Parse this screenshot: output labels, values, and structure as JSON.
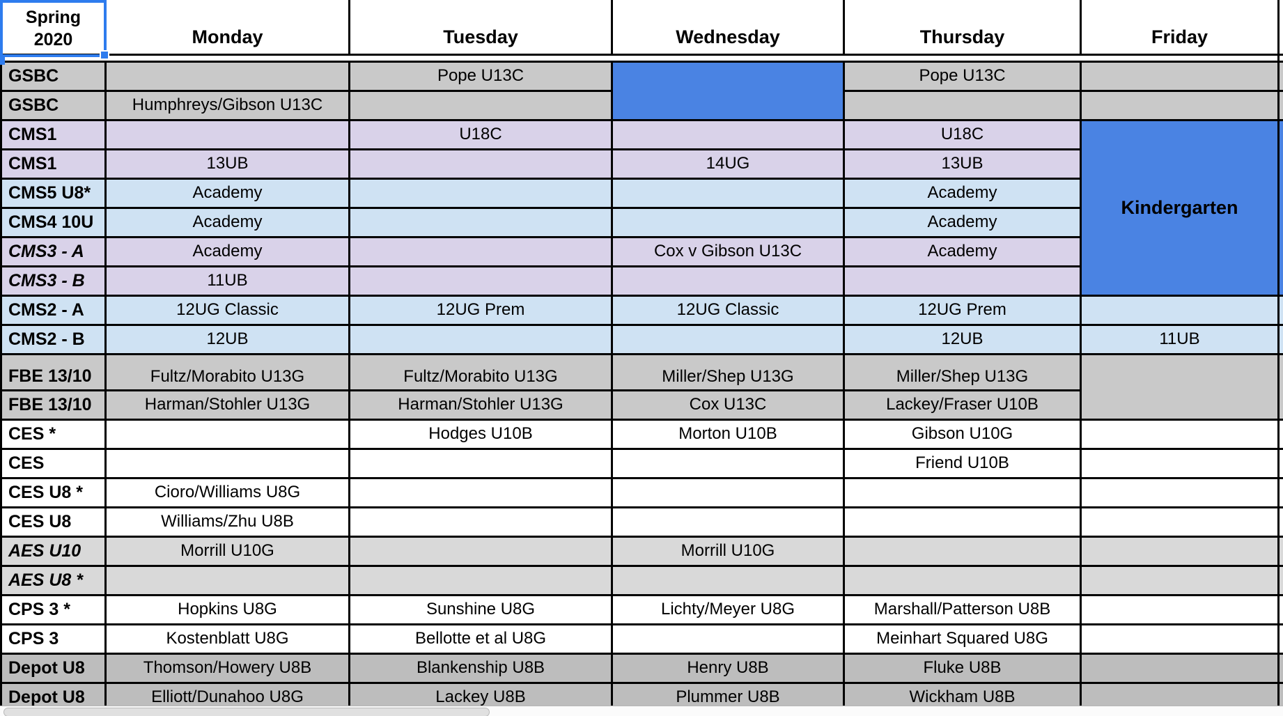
{
  "table": {
    "corner_cell": {
      "line1": "Spring",
      "line2": "2020"
    },
    "day_headers": [
      "Monday",
      "Tuesday",
      "Wednesday",
      "Thursday",
      "Friday"
    ],
    "rows": [
      {
        "label": "GSBC",
        "style": "gray",
        "italic": false,
        "cells": [
          "",
          "Pope U13C",
          null,
          "Pope U13C",
          ""
        ]
      },
      {
        "label": "GSBC",
        "style": "gray",
        "italic": false,
        "cells": [
          "Humphreys/Gibson U13C",
          "",
          null,
          "",
          ""
        ]
      },
      {
        "label": "CMS1",
        "style": "purple",
        "italic": false,
        "cells": [
          "",
          "U18C",
          "",
          "U18C",
          null
        ]
      },
      {
        "label": "CMS1",
        "style": "purple",
        "italic": false,
        "cells": [
          "13UB",
          "",
          "14UG",
          "13UB",
          null
        ]
      },
      {
        "label": "CMS5 U8*",
        "style": "lightblue",
        "italic": false,
        "cells": [
          "Academy",
          "",
          "",
          "Academy",
          null
        ]
      },
      {
        "label": "CMS4 10U",
        "style": "lightblue",
        "italic": false,
        "cells": [
          "Academy",
          "",
          "",
          "Academy",
          null
        ]
      },
      {
        "label": "CMS3 - A",
        "style": "purple",
        "italic": true,
        "cells": [
          "Academy",
          "",
          "Cox v Gibson U13C",
          "Academy",
          null
        ]
      },
      {
        "label": "CMS3 - B",
        "style": "purple",
        "italic": true,
        "cells": [
          "11UB",
          "",
          "",
          "",
          null
        ]
      },
      {
        "label": "CMS2 - A",
        "style": "lightblue",
        "italic": false,
        "cells": [
          "12UG Classic",
          "12UG Prem",
          "12UG Classic",
          "12UG Prem",
          ""
        ]
      },
      {
        "label": "CMS2 - B",
        "style": "lightblue",
        "italic": false,
        "cells": [
          "12UB",
          "",
          "",
          "12UB",
          "11UB"
        ]
      },
      {
        "label": "FBE 13/10",
        "style": "gray",
        "italic": false,
        "cells": [
          "Fultz/Morabito U13G",
          "Fultz/Morabito U13G",
          "Miller/Shep U13G",
          "Miller/Shep U13G",
          null
        ]
      },
      {
        "label": "FBE 13/10",
        "style": "gray",
        "italic": false,
        "cells": [
          "Harman/Stohler U13G",
          "Harman/Stohler U13G",
          "Cox U13C",
          "Lackey/Fraser U10B",
          null
        ]
      },
      {
        "label": "CES *",
        "style": "white",
        "italic": false,
        "cells": [
          "",
          "Hodges U10B",
          "Morton U10B",
          "Gibson U10G",
          ""
        ]
      },
      {
        "label": "CES",
        "style": "white",
        "italic": false,
        "cells": [
          "",
          "",
          "",
          "Friend U10B",
          ""
        ]
      },
      {
        "label": "CES U8 *",
        "style": "white",
        "italic": false,
        "cells": [
          "Cioro/Williams U8G",
          "",
          "",
          "",
          ""
        ]
      },
      {
        "label": "CES U8",
        "style": "white",
        "italic": false,
        "cells": [
          "Williams/Zhu U8B",
          "",
          "",
          "",
          ""
        ]
      },
      {
        "label": "AES U10",
        "style": "grayaes",
        "italic": true,
        "cells": [
          "Morrill U10G",
          "",
          "Morrill U10G",
          "",
          ""
        ]
      },
      {
        "label": "AES U8 *",
        "style": "grayaes",
        "italic": true,
        "cells": [
          "",
          "",
          "",
          "",
          ""
        ]
      },
      {
        "label": "CPS 3 *",
        "style": "white",
        "italic": false,
        "cells": [
          "Hopkins U8G",
          "Sunshine U8G",
          "Lichty/Meyer U8G",
          "Marshall/Patterson U8B",
          ""
        ]
      },
      {
        "label": "CPS 3",
        "style": "white",
        "italic": false,
        "cells": [
          "Kostenblatt U8G",
          "Bellotte et al U8G",
          "",
          "Meinhart Squared U8G",
          ""
        ]
      },
      {
        "label": "Depot U8",
        "style": "graydepot",
        "italic": false,
        "cells": [
          "Thomson/Howery U8B",
          "Blankenship U8B",
          "Henry U8B",
          "Fluke U8B",
          ""
        ]
      },
      {
        "label": "Depot U8",
        "style": "graydepot",
        "italic": false,
        "cells": [
          "Elliott/Dunahoo U8G",
          "Lackey U8B",
          "Plummer U8B",
          "Wickham U8B",
          ""
        ]
      }
    ],
    "merges": [
      {
        "name": "wednesday-gsbc-block",
        "col": 2,
        "row": 0,
        "span": 2,
        "style": "blue",
        "text": ""
      },
      {
        "name": "friday-kindergarten",
        "col": 4,
        "row": 2,
        "span": 6,
        "style": "blue",
        "text": "Kindergarten"
      },
      {
        "name": "friday-fbe-block",
        "col": 4,
        "row": 10,
        "span": 2,
        "style": "gray",
        "text": ""
      }
    ],
    "colors": {
      "gray": "#c9c9c9",
      "purple": "#d9d2e9",
      "lightblue": "#cfe2f3",
      "grayaes": "#d9d9d9",
      "graydepot": "#bdbdbd",
      "white": "#ffffff",
      "blue": "#4a83e3",
      "spacer": "#d9dbe4",
      "selection": "#2e7cee"
    }
  }
}
